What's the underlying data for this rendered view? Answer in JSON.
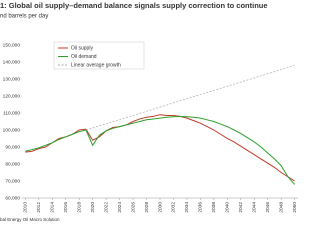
{
  "chart_data": {
    "type": "line",
    "title": "1: Global oil supply–demand balance signals supply correction to continue",
    "subtitle": "nd barrels per day",
    "source": "bal Energy Oil Macro Solution",
    "xlim": [
      2009.5,
      2050.5
    ],
    "xticks": [
      2010,
      2012,
      2014,
      2016,
      2018,
      2020,
      2022,
      2024,
      2026,
      2028,
      2030,
      2032,
      2034,
      2036,
      2038,
      2040,
      2042,
      2044,
      2046,
      2048,
      2050
    ],
    "ylim": [
      60000,
      150000
    ],
    "yticks": [
      {
        "value": 60000,
        "label": "60,000"
      },
      {
        "value": 70000,
        "label": "70,000"
      },
      {
        "value": 80000,
        "label": "80,000"
      },
      {
        "value": 90000,
        "label": "90,000"
      },
      {
        "value": 100000,
        "label": "100,000"
      },
      {
        "value": 110000,
        "label": "110,000"
      },
      {
        "value": 120000,
        "label": "120,000"
      },
      {
        "value": 130000,
        "label": "130,000"
      },
      {
        "value": 140000,
        "label": "140,000"
      },
      {
        "value": 150000,
        "label": "150,000"
      }
    ],
    "grid": false,
    "legend": "upper left",
    "series": [
      {
        "name": "Oil supply",
        "color": "#c0392b",
        "style": "solid",
        "x": [
          2010,
          2011,
          2012,
          2013,
          2014,
          2015,
          2016,
          2017,
          2018,
          2019,
          2020,
          2021,
          2022,
          2023,
          2024,
          2025,
          2026,
          2027,
          2028,
          2029,
          2030,
          2031,
          2032,
          2033,
          2034,
          2035,
          2036,
          2037,
          2038,
          2039,
          2040,
          2041,
          2042,
          2043,
          2044,
          2045,
          2046,
          2047,
          2048,
          2049,
          2050
        ],
        "values": [
          87000,
          87500,
          89000,
          90000,
          92500,
          95000,
          96000,
          97500,
          100000,
          100500,
          94000,
          96000,
          99500,
          101500,
          102000,
          103000,
          105000,
          106500,
          107500,
          108000,
          109000,
          108500,
          108500,
          108000,
          107000,
          105500,
          104000,
          102000,
          100000,
          97500,
          95000,
          93000,
          90500,
          88000,
          85500,
          83000,
          80500,
          78000,
          75000,
          72500,
          70000
        ]
      },
      {
        "name": "Oil demand",
        "color": "#2ca02c",
        "style": "solid",
        "x": [
          2010,
          2011,
          2012,
          2013,
          2014,
          2015,
          2016,
          2017,
          2018,
          2019,
          2020,
          2021,
          2022,
          2023,
          2024,
          2025,
          2026,
          2027,
          2028,
          2029,
          2030,
          2031,
          2032,
          2033,
          2034,
          2035,
          2036,
          2037,
          2038,
          2039,
          2040,
          2041,
          2042,
          2043,
          2044,
          2045,
          2046,
          2047,
          2048,
          2049,
          2050
        ],
        "values": [
          87500,
          88500,
          89500,
          91000,
          92500,
          94500,
          96000,
          97500,
          99000,
          100000,
          91000,
          97000,
          99500,
          101000,
          102000,
          103000,
          104000,
          105000,
          106000,
          106500,
          107000,
          107500,
          107800,
          108000,
          107800,
          107500,
          107000,
          106000,
          105000,
          103500,
          102000,
          100000,
          98000,
          95500,
          93000,
          90000,
          86500,
          83000,
          79000,
          72500,
          68000
        ]
      },
      {
        "name": "Linear average growth",
        "color": "#aaaaaa",
        "style": "dashed",
        "x": [
          2019,
          2050
        ],
        "values": [
          100000,
          138000
        ]
      }
    ]
  }
}
